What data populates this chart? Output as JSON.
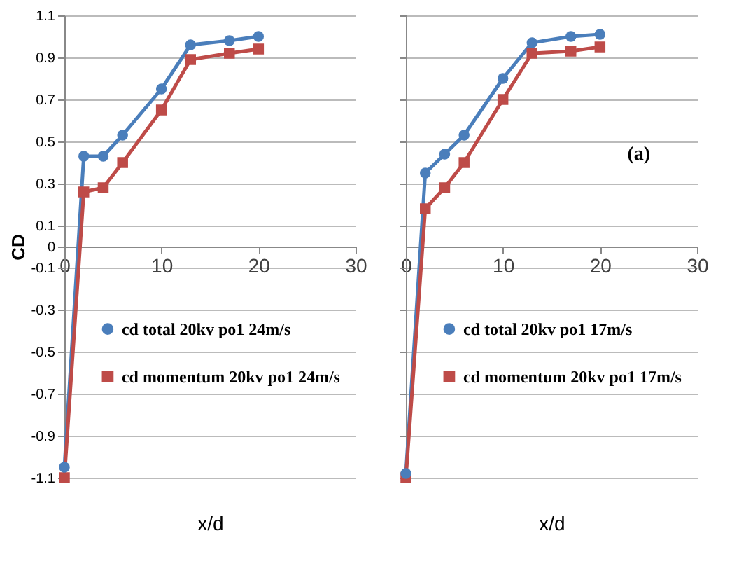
{
  "chart_data": [
    {
      "type": "line",
      "xlabel": "x/d",
      "ylabel": "CD",
      "xlim": [
        0,
        30
      ],
      "xticks": [
        0,
        10,
        20,
        30
      ],
      "ylim": [
        -1.1,
        1.1
      ],
      "yticks": [
        -1.1,
        -0.9,
        -0.7,
        -0.5,
        -0.3,
        -0.1,
        {
          "value": 0,
          "label": "0"
        },
        0.1,
        0.3,
        0.5,
        0.7,
        0.9,
        1.1
      ],
      "grid": "y",
      "legend": "bottom",
      "line_style": "solid",
      "series": [
        {
          "name": "cd total 20kv po1 24m/s",
          "color": "#4a7ebb",
          "marker": "circle",
          "x": [
            0,
            2,
            4,
            6,
            10,
            13,
            17,
            20
          ],
          "values": [
            -1.05,
            0.43,
            0.43,
            0.53,
            0.75,
            0.96,
            0.98,
            1.0
          ]
        },
        {
          "name": "cd momentum 20kv po1 24m/s",
          "color": "#be4b48",
          "marker": "square",
          "x": [
            0,
            2,
            4,
            6,
            10,
            13,
            17,
            20
          ],
          "values": [
            -1.1,
            0.26,
            0.28,
            0.4,
            0.65,
            0.89,
            0.92,
            0.94
          ]
        }
      ]
    },
    {
      "type": "line",
      "xlabel": "x/d",
      "xlim": [
        0,
        30
      ],
      "xticks": [
        0,
        10,
        20,
        30
      ],
      "ylim": [
        -1.1,
        1.1
      ],
      "yticks": [
        -1.1,
        -0.9,
        -0.7,
        -0.5,
        -0.3,
        -0.1,
        0.1,
        0.3,
        0.5,
        0.7,
        0.9,
        1.1
      ],
      "grid": "y",
      "legend": "bottom",
      "line_style": "solid",
      "tick_labels": "x",
      "annotations": [
        "(a)"
      ],
      "series": [
        {
          "name": "cd total 20kv po1 17m/s",
          "color": "#4a7ebb",
          "marker": "circle",
          "x": [
            0,
            2,
            4,
            6,
            10,
            13,
            17,
            20
          ],
          "values": [
            -1.08,
            0.35,
            0.44,
            0.53,
            0.8,
            0.97,
            1.0,
            1.01
          ]
        },
        {
          "name": "cd momentum 20kv po1 17m/s",
          "color": "#be4b48",
          "marker": "square",
          "x": [
            0,
            2,
            4,
            6,
            10,
            13,
            17,
            20
          ],
          "values": [
            -1.1,
            0.18,
            0.28,
            0.4,
            0.7,
            0.92,
            0.93,
            0.95
          ]
        }
      ]
    }
  ]
}
